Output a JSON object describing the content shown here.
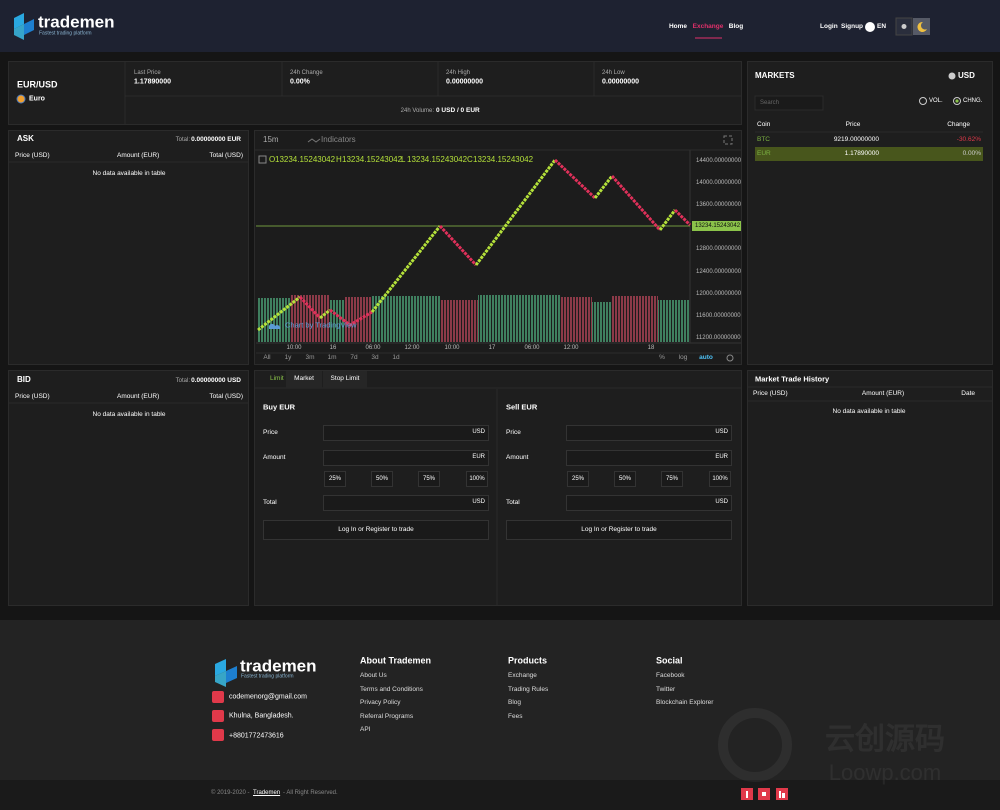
{
  "header": {
    "logo": "trademen",
    "tagline": "Fastest trading platform",
    "nav": [
      "Home",
      "Exchange",
      "Blog"
    ],
    "login": "Login",
    "signup": "Signup",
    "language": "EN"
  },
  "ticker": {
    "pair": "EUR/USD",
    "currency": "Euro",
    "stats": [
      {
        "label": "Last Price",
        "value": "1.17890000"
      },
      {
        "label": "24h Change",
        "value": "0.00%"
      },
      {
        "label": "24h High",
        "value": "0.00000000"
      },
      {
        "label": "24h Low",
        "value": "0.00000000"
      }
    ],
    "volume_label": "24h Volume:",
    "volume": "0 USD / 0 EUR"
  },
  "ask": {
    "title": "ASK",
    "total_label": "Total:",
    "total": "0.00000000 EUR",
    "columns": [
      "Price (USD)",
      "Amount (EUR)",
      "Total (USD)"
    ],
    "empty": "No data available in table"
  },
  "bid": {
    "title": "BID",
    "total_label": "Total:",
    "total": "0.00000000 USD",
    "columns": [
      "Price (USD)",
      "Amount (EUR)",
      "Total (USD)"
    ],
    "empty": "No data available in table"
  },
  "chart": {
    "interval": "15m",
    "indicators": "Indicators",
    "ohlc": [
      {
        "key": "O",
        "value": "13234.15243042"
      },
      {
        "key": "H",
        "value": "13234.15243042"
      },
      {
        "key": "L",
        "value": "13234.15243042"
      },
      {
        "key": "C",
        "value": "13234.15243042"
      }
    ],
    "price_labels": [
      "14400.00000000",
      "14000.00000000",
      "13600.00000000",
      "12800.00000000",
      "12400.00000000",
      "12000.00000000",
      "11600.00000000",
      "11200.00000000"
    ],
    "current_price": "13234.15243042",
    "time_labels": [
      "10:00",
      "16",
      "06:00",
      "12:00",
      "10:00",
      "17",
      "06:00",
      "12:00",
      "18"
    ],
    "ranges": [
      "All",
      "1y",
      "3m",
      "1m",
      "7d",
      "3d",
      "1d"
    ],
    "options": [
      "%",
      "log",
      "auto"
    ],
    "credit": "Chart by TradingView"
  },
  "markets": {
    "title": "MARKETS",
    "currency": "USD",
    "search": "Search",
    "toggles": [
      "VOL.",
      "CHNG."
    ],
    "columns": [
      "Coin",
      "Price",
      "Change"
    ],
    "rows": [
      [
        "BTC",
        "9219.00000000",
        "-30.62%"
      ],
      [
        "EUR",
        "1.17890000",
        "0.00%"
      ]
    ]
  },
  "order_form": {
    "tabs": [
      "Limit",
      "Market",
      "Stop Limit"
    ],
    "buy": {
      "title": "Buy EUR",
      "price": "Price",
      "price_unit": "USD",
      "amount": "Amount",
      "amount_unit": "EUR",
      "percents": [
        "25%",
        "50%",
        "75%",
        "100%"
      ],
      "total": "Total",
      "total_unit": "USD",
      "button": "Log In or Register to trade"
    },
    "sell": {
      "title": "Sell EUR",
      "price": "Price",
      "price_unit": "USD",
      "amount": "Amount",
      "amount_unit": "EUR",
      "percents": [
        "25%",
        "50%",
        "75%",
        "100%"
      ],
      "total": "Total",
      "total_unit": "USD",
      "button": "Log In or Register to trade"
    }
  },
  "trade_history": {
    "title": "Market Trade History",
    "columns": [
      "Price (USD)",
      "Amount (EUR)",
      "Date"
    ],
    "empty": "No data available in table"
  },
  "footer": {
    "logo": "trademen",
    "tagline": "Fastest trading platform",
    "contacts": [
      "codemenorg@gmail.com",
      "Khulna, Bangladesh.",
      "+8801772473616"
    ],
    "columns": [
      {
        "title": "About Trademen",
        "links": [
          "About Us",
          "Terms and Conditions",
          "Privacy Policy",
          "Referral Programs",
          "API"
        ]
      },
      {
        "title": "Products",
        "links": [
          "Exchange",
          "Trading Rules",
          "Blog",
          "Fees"
        ]
      },
      {
        "title": "Social",
        "links": [
          "Facebook",
          "Twitter",
          "Blockchain Explorer"
        ]
      }
    ],
    "copyright": [
      "© 2019-2020 -",
      "Trademen",
      "- All Right Reserved."
    ]
  },
  "watermark": {
    "cn": "云创源码",
    "url": "Loowp.com"
  }
}
